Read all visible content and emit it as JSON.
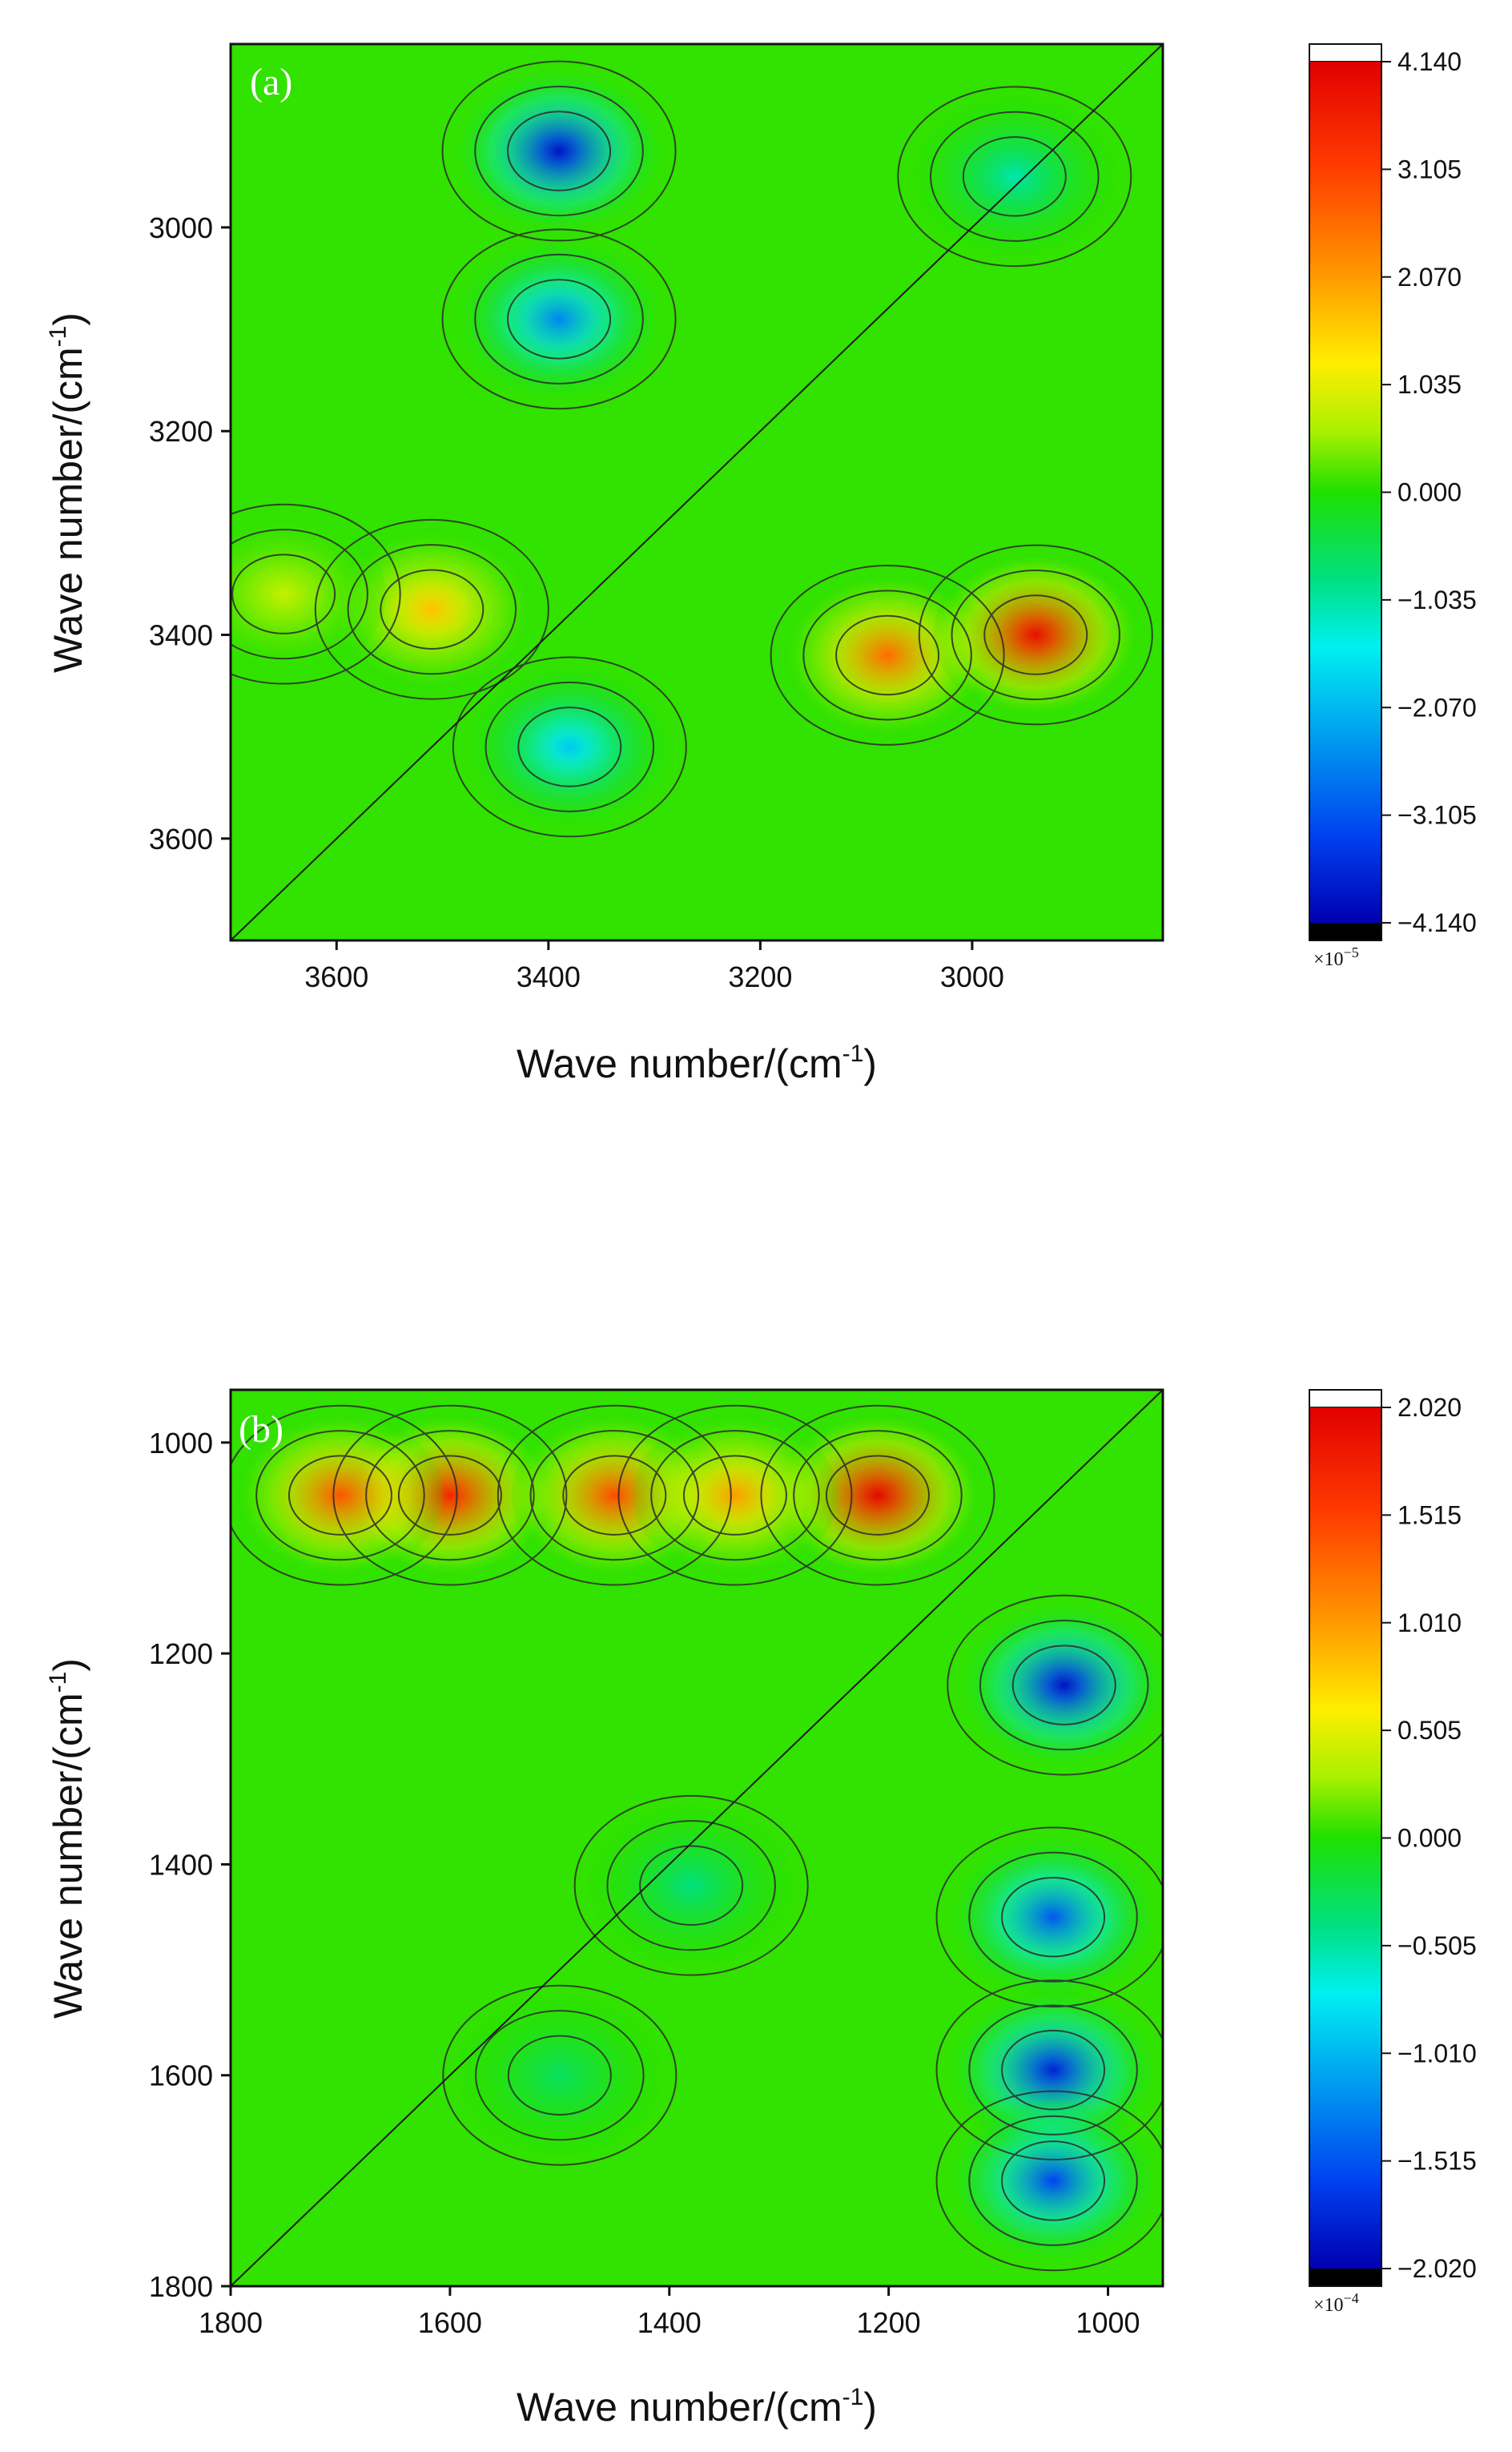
{
  "chart_data": [
    {
      "type": "heatmap",
      "panel_label": "(a)",
      "xlabel": "Wave number/(cm",
      "xlabel_sup": "-1",
      "xlabel_end": ")",
      "ylabel": "Wave number/(cm",
      "ylabel_sup": "-1",
      "ylabel_end": ")",
      "xlim": [
        3700,
        2820
      ],
      "ylim": [
        2820,
        3700
      ],
      "x_ticks": [
        "3600",
        "3400",
        "3200",
        "3000"
      ],
      "y_ticks": [
        "3000",
        "3200",
        "3400",
        "3600"
      ],
      "colorbar": {
        "ticks": [
          "4.140",
          "3.105",
          "2.070",
          "1.035",
          "0.000",
          "−1.035",
          "−2.070",
          "−3.105",
          "−4.140"
        ],
        "min": -4.14,
        "max": 4.14,
        "exponent_label": "×10",
        "exponent_sup": "−5"
      },
      "features": [
        {
          "x": 3390,
          "y": 3090,
          "value": -2.6,
          "note": "auto-peak 3390/3090"
        },
        {
          "x": 3390,
          "y": 2925,
          "value": -3.9
        },
        {
          "x": 3380,
          "y": 3510,
          "value": -1.9
        },
        {
          "x": 3080,
          "y": 3420,
          "value": 2.6
        },
        {
          "x": 2940,
          "y": 3400,
          "value": 3.9
        },
        {
          "x": 3510,
          "y": 3375,
          "value": 1.7
        },
        {
          "x": 3650,
          "y": 3360,
          "value": 0.8
        },
        {
          "x": 2960,
          "y": 2950,
          "value": -1.1
        }
      ]
    },
    {
      "type": "heatmap",
      "panel_label": "(b)",
      "xlabel": "Wave number/(cm",
      "xlabel_sup": "-1",
      "xlabel_end": ")",
      "ylabel": "Wave number/(cm",
      "ylabel_sup": "-1",
      "ylabel_end": ")",
      "xlim": [
        1800,
        950
      ],
      "ylim": [
        950,
        1800
      ],
      "x_ticks": [
        "1800",
        "1600",
        "1400",
        "1200",
        "1000"
      ],
      "y_ticks": [
        "1000",
        "1200",
        "1400",
        "1600",
        "1800"
      ],
      "colorbar": {
        "ticks": [
          "2.020",
          "1.515",
          "1.010",
          "0.505",
          "0.000",
          "−0.505",
          "−1.010",
          "−1.515",
          "−2.020"
        ],
        "min": -2.02,
        "max": 2.02,
        "exponent_label": "×10",
        "exponent_sup": "−4"
      },
      "features": [
        {
          "x": 1210,
          "y": 1050,
          "value": 1.95
        },
        {
          "x": 1600,
          "y": 1050,
          "value": 1.7
        },
        {
          "x": 1700,
          "y": 1050,
          "value": 1.4
        },
        {
          "x": 1450,
          "y": 1050,
          "value": 1.45
        },
        {
          "x": 1340,
          "y": 1050,
          "value": 1.0
        },
        {
          "x": 1040,
          "y": 1230,
          "value": -1.9
        },
        {
          "x": 1050,
          "y": 1450,
          "value": -1.5
        },
        {
          "x": 1050,
          "y": 1595,
          "value": -1.8
        },
        {
          "x": 1050,
          "y": 1700,
          "value": -1.6
        },
        {
          "x": 1380,
          "y": 1420,
          "value": -0.4
        },
        {
          "x": 1500,
          "y": 1600,
          "value": -0.3
        }
      ]
    }
  ]
}
